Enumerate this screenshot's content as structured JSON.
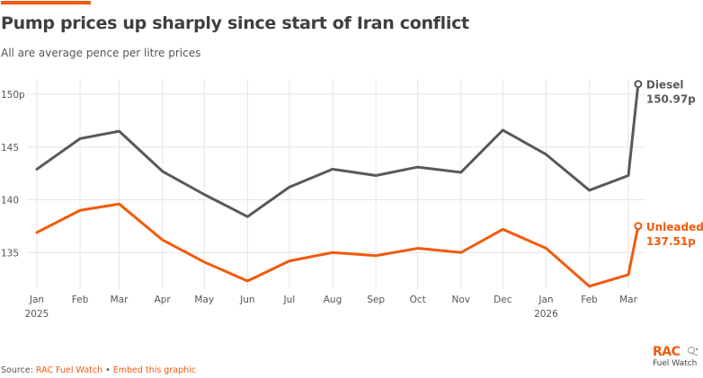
{
  "header": {
    "title": "Pump prices up sharply since start of Iran conflict",
    "subtitle": "All are average pence per litre prices"
  },
  "footer": {
    "source_prefix": "Source: ",
    "source_link": "RAC Fuel Watch",
    "separator": " • ",
    "embed_link": "Embed this graphic"
  },
  "logo": {
    "brand": "RAC",
    "product": "Fuel Watch",
    "icon": "car-fuel-icon"
  },
  "colors": {
    "accent": "#f25a0c",
    "diesel": "#595959",
    "unleaded": "#f25a0c",
    "grid": "#e5e5e5"
  },
  "chart_data": {
    "type": "line",
    "title": "Pump prices up sharply since start of Iran conflict",
    "subtitle": "All are average pence per litre prices",
    "xlabel": "",
    "ylabel": "",
    "ylim": [
      131,
      151.5
    ],
    "y_ticks": [
      {
        "value": 135,
        "label": "135"
      },
      {
        "value": 140,
        "label": "140"
      },
      {
        "value": 145,
        "label": "145"
      },
      {
        "value": 150,
        "label": "150p"
      }
    ],
    "x_ticks": [
      {
        "day": 0,
        "label": "Jan",
        "year": "2025"
      },
      {
        "day": 31,
        "label": "Feb",
        "year": ""
      },
      {
        "day": 59,
        "label": "Mar",
        "year": ""
      },
      {
        "day": 90,
        "label": "Apr",
        "year": ""
      },
      {
        "day": 120,
        "label": "May",
        "year": ""
      },
      {
        "day": 151,
        "label": "Jun",
        "year": ""
      },
      {
        "day": 181,
        "label": "Jul",
        "year": ""
      },
      {
        "day": 212,
        "label": "Aug",
        "year": ""
      },
      {
        "day": 243,
        "label": "Sep",
        "year": ""
      },
      {
        "day": 273,
        "label": "Oct",
        "year": ""
      },
      {
        "day": 304,
        "label": "Nov",
        "year": ""
      },
      {
        "day": 334,
        "label": "Dec",
        "year": ""
      },
      {
        "day": 365,
        "label": "Jan",
        "year": "2026"
      },
      {
        "day": 396,
        "label": "Feb",
        "year": ""
      },
      {
        "day": 424,
        "label": "Mar",
        "year": ""
      }
    ],
    "xlim_days": [
      0,
      431
    ],
    "grid": true,
    "legend": "direct-labels-right",
    "x_days": [
      0,
      31,
      59,
      90,
      120,
      151,
      181,
      212,
      243,
      273,
      304,
      334,
      365,
      396,
      424,
      431
    ],
    "series": [
      {
        "name": "Diesel",
        "end_label": "150.97p",
        "color": "#595959",
        "values": [
          142.9,
          145.8,
          146.5,
          142.7,
          140.5,
          138.4,
          141.2,
          142.9,
          142.3,
          143.1,
          142.6,
          146.6,
          144.3,
          140.9,
          142.3,
          150.97
        ]
      },
      {
        "name": "Unleaded",
        "end_label": "137.51p",
        "color": "#f25a0c",
        "values": [
          136.9,
          139.0,
          139.6,
          136.2,
          134.1,
          132.3,
          134.2,
          135.0,
          134.7,
          135.4,
          135.0,
          137.2,
          135.4,
          131.8,
          132.9,
          137.51
        ]
      }
    ]
  }
}
